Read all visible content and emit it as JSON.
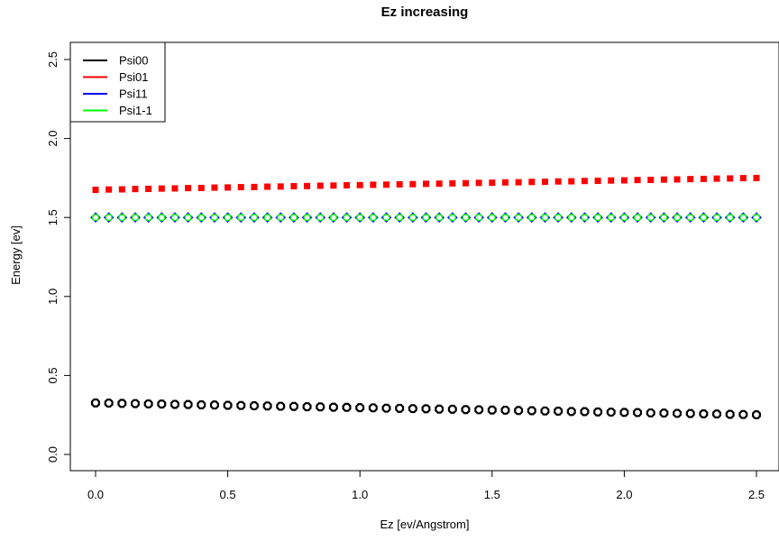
{
  "chart_data": {
    "type": "scatter",
    "title": "Ez increasing",
    "xlabel": "Ez [ev/Angstrom]",
    "ylabel": "Energy [ev]",
    "xlim": [
      0,
      2.5
    ],
    "ylim": [
      0,
      2.5
    ],
    "xticks": [
      "0.0",
      "0.5",
      "1.0",
      "1.5",
      "2.0",
      "2.5"
    ],
    "yticks": [
      "0.0",
      "0.5",
      "1.0",
      "1.5",
      "2.0",
      "2.5"
    ],
    "grid": false,
    "legend_position": "top-left",
    "x": [
      0.0,
      0.05,
      0.1,
      0.15,
      0.2,
      0.25,
      0.3,
      0.35,
      0.4,
      0.45,
      0.5,
      0.55,
      0.6,
      0.65,
      0.7,
      0.75,
      0.8,
      0.85,
      0.9,
      0.95,
      1.0,
      1.05,
      1.1,
      1.15,
      1.2,
      1.25,
      1.3,
      1.35,
      1.4,
      1.45,
      1.5,
      1.55,
      1.6,
      1.65,
      1.7,
      1.75,
      1.8,
      1.85,
      1.9,
      1.95,
      2.0,
      2.05,
      2.1,
      2.15,
      2.2,
      2.25,
      2.3,
      2.35,
      2.4,
      2.45,
      2.5
    ],
    "series": [
      {
        "name": "Psi00",
        "color": "#000000",
        "marker": "octagon",
        "values": [
          0.326,
          0.325,
          0.323,
          0.322,
          0.32,
          0.319,
          0.317,
          0.316,
          0.314,
          0.313,
          0.311,
          0.31,
          0.308,
          0.307,
          0.305,
          0.304,
          0.302,
          0.301,
          0.299,
          0.298,
          0.296,
          0.295,
          0.293,
          0.292,
          0.29,
          0.289,
          0.287,
          0.286,
          0.284,
          0.283,
          0.281,
          0.28,
          0.278,
          0.277,
          0.275,
          0.274,
          0.272,
          0.271,
          0.269,
          0.268,
          0.266,
          0.265,
          0.263,
          0.262,
          0.26,
          0.259,
          0.257,
          0.256,
          0.254,
          0.253,
          0.251
        ]
      },
      {
        "name": "Psi01",
        "color": "#ff0000",
        "marker": "square",
        "values": [
          1.675,
          1.677,
          1.678,
          1.68,
          1.681,
          1.683,
          1.684,
          1.686,
          1.687,
          1.689,
          1.69,
          1.692,
          1.693,
          1.695,
          1.696,
          1.698,
          1.699,
          1.701,
          1.702,
          1.704,
          1.705,
          1.707,
          1.708,
          1.71,
          1.711,
          1.713,
          1.714,
          1.716,
          1.717,
          1.719,
          1.72,
          1.722,
          1.723,
          1.725,
          1.726,
          1.728,
          1.729,
          1.731,
          1.732,
          1.734,
          1.735,
          1.737,
          1.738,
          1.74,
          1.741,
          1.743,
          1.744,
          1.746,
          1.747,
          1.749,
          1.75
        ]
      },
      {
        "name": "Psi11",
        "color": "#0000ff",
        "marker": "diamond",
        "values": [
          1.5,
          1.5,
          1.5,
          1.5,
          1.5,
          1.5,
          1.5,
          1.5,
          1.5,
          1.5,
          1.5,
          1.5,
          1.5,
          1.5,
          1.5,
          1.5,
          1.5,
          1.5,
          1.5,
          1.5,
          1.5,
          1.5,
          1.5,
          1.5,
          1.5,
          1.5,
          1.5,
          1.5,
          1.5,
          1.5,
          1.5,
          1.5,
          1.5,
          1.5,
          1.5,
          1.5,
          1.5,
          1.5,
          1.5,
          1.5,
          1.5,
          1.5,
          1.5,
          1.5,
          1.5,
          1.5,
          1.5,
          1.5,
          1.5,
          1.5,
          1.5
        ]
      },
      {
        "name": "Psi1-1",
        "color": "#00ff00",
        "marker": "circle",
        "values": [
          1.5,
          1.5,
          1.5,
          1.5,
          1.5,
          1.5,
          1.5,
          1.5,
          1.5,
          1.5,
          1.5,
          1.5,
          1.5,
          1.5,
          1.5,
          1.5,
          1.5,
          1.5,
          1.5,
          1.5,
          1.5,
          1.5,
          1.5,
          1.5,
          1.5,
          1.5,
          1.5,
          1.5,
          1.5,
          1.5,
          1.5,
          1.5,
          1.5,
          1.5,
          1.5,
          1.5,
          1.5,
          1.5,
          1.5,
          1.5,
          1.5,
          1.5,
          1.5,
          1.5,
          1.5,
          1.5,
          1.5,
          1.5,
          1.5,
          1.5,
          1.5
        ]
      }
    ]
  }
}
